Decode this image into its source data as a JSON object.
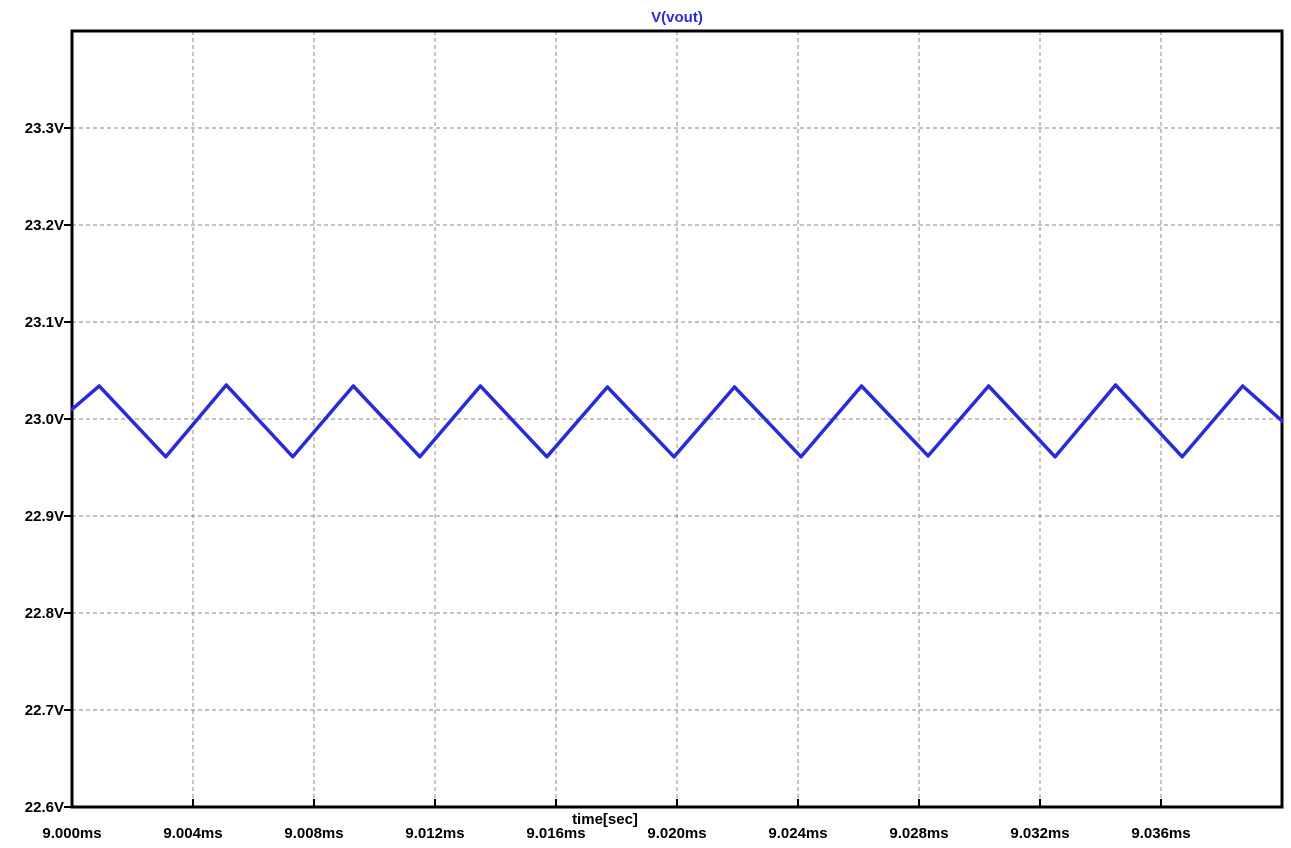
{
  "chart_data": {
    "type": "line",
    "title": "V(vout)",
    "xlabel": "time[sec]",
    "ylabel": "",
    "xlim": [
      9.0,
      9.04
    ],
    "ylim": [
      22.6,
      23.4
    ],
    "x_ticks": [
      9.0,
      9.004,
      9.008,
      9.012,
      9.016,
      9.02,
      9.024,
      9.028,
      9.032,
      9.036
    ],
    "x_tick_labels": [
      "9.000ms",
      "9.004ms",
      "9.008ms",
      "9.012ms",
      "9.016ms",
      "9.020ms",
      "9.024ms",
      "9.028ms",
      "9.032ms",
      "9.036ms"
    ],
    "y_ticks": [
      22.6,
      22.7,
      22.8,
      22.9,
      23.0,
      23.1,
      23.2,
      23.3
    ],
    "y_tick_labels": [
      "22.6V",
      "22.7V",
      "22.8V",
      "22.9V",
      "23.0V",
      "23.1V",
      "23.2V",
      "23.3V"
    ],
    "grid": true,
    "series": [
      {
        "name": "V(vout)",
        "color": "#2a2ad8",
        "x": [
          9.0,
          9.0009,
          9.0031,
          9.0051,
          9.0073,
          9.0093,
          9.0115,
          9.0135,
          9.0157,
          9.0177,
          9.0199,
          9.0219,
          9.0241,
          9.0261,
          9.0283,
          9.0303,
          9.0325,
          9.0345,
          9.0367,
          9.0387,
          9.04
        ],
        "values": [
          23.01,
          23.034,
          22.961,
          23.035,
          22.961,
          23.034,
          22.961,
          23.034,
          22.961,
          23.033,
          22.961,
          23.033,
          22.961,
          23.034,
          22.962,
          23.034,
          22.961,
          23.035,
          22.961,
          23.034,
          22.998
        ]
      }
    ]
  }
}
